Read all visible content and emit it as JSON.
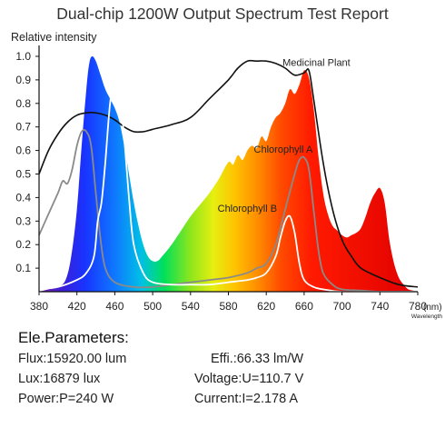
{
  "title": "Dual-chip 1200W Output Spectrum Test Report",
  "parameters": {
    "heading": "Ele.Parameters:",
    "flux": "Flux:15920.00 lum",
    "lux": "Lux:16879 lux",
    "power": "Power:P=240 W",
    "efficiency": "Effi.:66.33 lm/W",
    "voltage": "Voltage:U=110.7 V",
    "current": "Current:I=2.178 A"
  },
  "chart_data": {
    "type": "area",
    "title": "Dual-chip 1200W Output Spectrum Test Report",
    "ylabel": "Relative intensity",
    "xunit": "(nm)",
    "xunit_sub": "Wavelength",
    "xlim": [
      380,
      780
    ],
    "ylim": [
      0,
      1.0
    ],
    "x_ticks": [
      380,
      420,
      460,
      500,
      540,
      580,
      620,
      660,
      700,
      740,
      780
    ],
    "y_ticks": [
      0.1,
      0.2,
      0.3,
      0.4,
      0.5,
      0.6,
      0.7,
      0.8,
      0.9,
      1.0
    ],
    "grid": false,
    "series": [
      {
        "name": "",
        "style": "filled-rainbow",
        "x": [
          380,
          390,
          400,
          408,
          414,
          420,
          425,
          430,
          433,
          436,
          440,
          445,
          450,
          455,
          460,
          465,
          470,
          475,
          480,
          485,
          490,
          495,
          500,
          505,
          510,
          520,
          530,
          540,
          550,
          560,
          570,
          580,
          585,
          590,
          595,
          600,
          605,
          610,
          615,
          620,
          625,
          630,
          635,
          640,
          645,
          650,
          655,
          660,
          665,
          670,
          675,
          680,
          685,
          690,
          695,
          700,
          705,
          710,
          715,
          720,
          725,
          730,
          735,
          740,
          745,
          750,
          755,
          760,
          765,
          770,
          775,
          780
        ],
        "values": [
          0,
          0.01,
          0.02,
          0.05,
          0.15,
          0.35,
          0.62,
          0.86,
          0.97,
          1.0,
          0.98,
          0.92,
          0.86,
          0.82,
          0.78,
          0.72,
          0.62,
          0.5,
          0.38,
          0.28,
          0.2,
          0.15,
          0.13,
          0.13,
          0.15,
          0.2,
          0.26,
          0.32,
          0.37,
          0.42,
          0.48,
          0.55,
          0.54,
          0.58,
          0.56,
          0.6,
          0.62,
          0.61,
          0.66,
          0.64,
          0.7,
          0.74,
          0.76,
          0.8,
          0.86,
          0.84,
          0.88,
          0.94,
          0.91,
          0.78,
          0.58,
          0.42,
          0.33,
          0.28,
          0.26,
          0.24,
          0.23,
          0.24,
          0.25,
          0.27,
          0.32,
          0.38,
          0.42,
          0.44,
          0.38,
          0.22,
          0.12,
          0.06,
          0.03,
          0.01,
          0.005,
          0
        ]
      },
      {
        "name": "Medicinal Plant",
        "style": "black-line",
        "x": [
          380,
          390,
          400,
          410,
          420,
          430,
          440,
          450,
          460,
          470,
          480,
          490,
          500,
          520,
          540,
          560,
          580,
          590,
          600,
          610,
          620,
          630,
          640,
          650,
          660,
          665,
          670,
          680,
          690,
          700,
          710,
          720,
          740,
          760,
          780
        ],
        "values": [
          0.5,
          0.6,
          0.67,
          0.72,
          0.75,
          0.76,
          0.76,
          0.75,
          0.73,
          0.7,
          0.68,
          0.68,
          0.69,
          0.71,
          0.74,
          0.82,
          0.9,
          0.95,
          0.98,
          0.98,
          0.98,
          0.97,
          0.95,
          0.92,
          0.93,
          0.94,
          0.82,
          0.55,
          0.35,
          0.22,
          0.15,
          0.1,
          0.06,
          0.03,
          0.02
        ]
      },
      {
        "name": "Chlorophyll A",
        "style": "gray-line",
        "x": [
          380,
          390,
          400,
          405,
          410,
          415,
          420,
          425,
          430,
          435,
          440,
          445,
          450,
          460,
          480,
          500,
          520,
          540,
          560,
          580,
          600,
          610,
          620,
          630,
          640,
          650,
          655,
          660,
          665,
          670,
          675,
          680,
          690,
          700,
          720,
          740,
          760,
          780
        ],
        "values": [
          0.24,
          0.33,
          0.42,
          0.47,
          0.46,
          0.52,
          0.62,
          0.68,
          0.68,
          0.62,
          0.42,
          0.22,
          0.1,
          0.04,
          0.02,
          0.02,
          0.03,
          0.04,
          0.05,
          0.06,
          0.08,
          0.1,
          0.12,
          0.2,
          0.35,
          0.5,
          0.56,
          0.57,
          0.52,
          0.35,
          0.18,
          0.08,
          0.03,
          0.01,
          0.005,
          0,
          0,
          0
        ]
      },
      {
        "name": "Chlorophyll B",
        "style": "white-line",
        "x": [
          380,
          400,
          420,
          430,
          438,
          442,
          446,
          450,
          455,
          460,
          465,
          470,
          475,
          480,
          490,
          500,
          520,
          540,
          560,
          580,
          600,
          610,
          620,
          630,
          635,
          640,
          645,
          650,
          655,
          660,
          670,
          680,
          700,
          740,
          780
        ],
        "values": [
          0.01,
          0.02,
          0.05,
          0.08,
          0.15,
          0.3,
          0.38,
          0.55,
          0.8,
          0.9,
          0.85,
          0.65,
          0.4,
          0.2,
          0.08,
          0.04,
          0.03,
          0.03,
          0.03,
          0.04,
          0.05,
          0.06,
          0.08,
          0.15,
          0.23,
          0.3,
          0.32,
          0.25,
          0.12,
          0.05,
          0.02,
          0.01,
          0,
          0,
          0
        ]
      }
    ],
    "annotations": [
      {
        "text": "Medicinal Plant",
        "x": 673,
        "y": 0.96
      },
      {
        "text": "Chlorophyll A",
        "x": 638,
        "y": 0.59
      },
      {
        "text": "Chlorophyll B",
        "x": 600,
        "y": 0.34
      }
    ]
  }
}
